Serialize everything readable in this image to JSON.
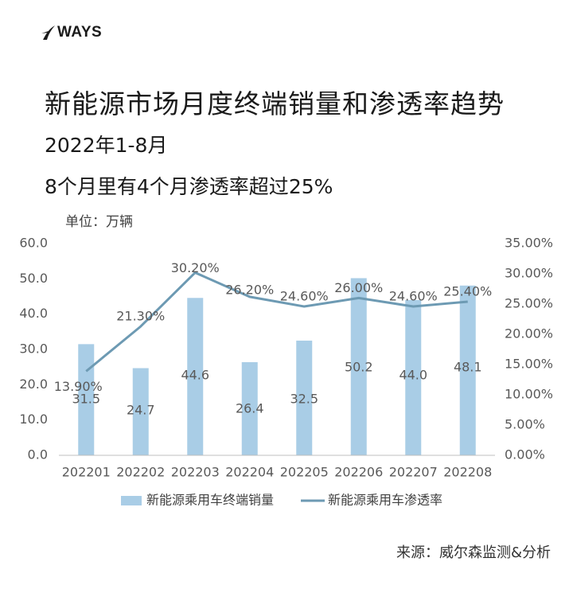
{
  "brand": {
    "logo_text": "WAYS",
    "logo_icon": "ways-swoosh-icon"
  },
  "header": {
    "title": "新能源市场月度终端销量和渗透率趋势",
    "subtitle": "2022年1-8月",
    "note": "8个月里有4个月渗透率超过25%"
  },
  "source": "来源：威尔森监测&分析",
  "colors": {
    "bar": "#a9cde6",
    "line": "#6d9ab3",
    "axis_text": "#595959"
  },
  "chart_data": {
    "type": "bar+line",
    "unit_label": "单位：万辆",
    "categories": [
      "202201",
      "202202",
      "202203",
      "202204",
      "202205",
      "202206",
      "202207",
      "202208"
    ],
    "series": [
      {
        "name": "新能源乘用车终端销量",
        "type": "bar",
        "axis": "left",
        "values": [
          31.5,
          24.7,
          44.6,
          26.4,
          32.5,
          50.2,
          44.0,
          48.1
        ],
        "labels": [
          "31.5",
          "24.7",
          "44.6",
          "26.4",
          "32.5",
          "50.2",
          "44.0",
          "48.1"
        ]
      },
      {
        "name": "新能源乘用车渗透率",
        "type": "line",
        "axis": "right",
        "values": [
          13.9,
          21.3,
          30.2,
          26.2,
          24.6,
          26.0,
          24.6,
          25.4
        ],
        "labels": [
          "13.90%",
          "21.30%",
          "30.20%",
          "26.20%",
          "24.60%",
          "26.00%",
          "24.60%",
          "25.40%"
        ]
      }
    ],
    "left_axis": {
      "ylim": [
        0,
        60
      ],
      "ticks": [
        "0.0",
        "10.0",
        "20.0",
        "30.0",
        "40.0",
        "50.0",
        "60.0"
      ]
    },
    "right_axis": {
      "ylim": [
        0,
        35
      ],
      "ticks": [
        "0.00%",
        "5.00%",
        "10.00%",
        "15.00%",
        "20.00%",
        "25.00%",
        "30.00%",
        "35.00%"
      ]
    },
    "grid": false,
    "legend": "bottom"
  }
}
